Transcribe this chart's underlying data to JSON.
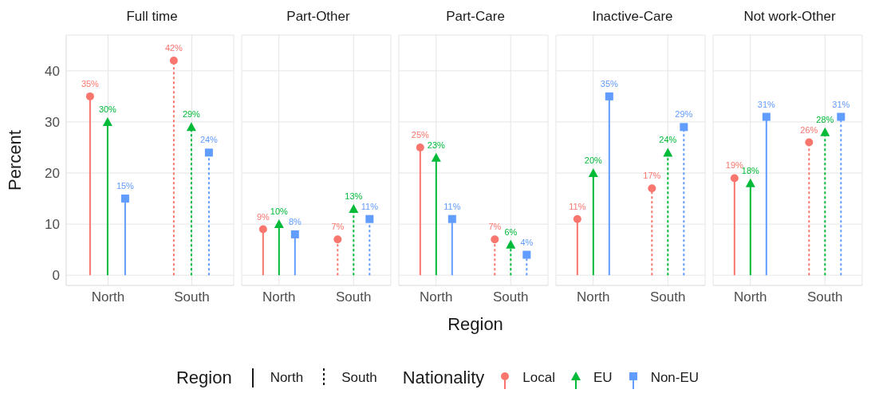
{
  "chart_data": [
    {
      "type": "lollipop",
      "title": "Full time",
      "ylabel": "Percent",
      "categories": [
        "North",
        "South"
      ],
      "line_style": [
        "solid",
        "dotted"
      ],
      "ylim": [
        -2,
        47
      ],
      "yticks": [
        0,
        10,
        20,
        30,
        40
      ],
      "grid": true,
      "legend": "bottom",
      "legend_title": [
        "Region",
        "Nationality"
      ],
      "series": [
        {
          "name": "Local",
          "color": "#f8766d",
          "marker": "circle",
          "values": [
            35,
            42
          ],
          "value_labels": [
            "35%",
            "42%"
          ]
        },
        {
          "name": "EU",
          "color": "#00ba38",
          "marker": "triangle",
          "values": [
            30,
            29
          ],
          "value_labels": [
            "30%",
            "29%"
          ]
        },
        {
          "name": "Non-EU",
          "color": "#619cff",
          "marker": "square",
          "values": [
            15,
            24
          ],
          "value_labels": [
            "15%",
            "24%"
          ]
        }
      ]
    },
    {
      "type": "lollipop",
      "title": "Part-Other",
      "categories": [
        "North",
        "South"
      ],
      "line_style": [
        "solid",
        "dotted"
      ],
      "ylim": [
        -2,
        47
      ],
      "yticks": [
        0,
        10,
        20,
        30,
        40
      ],
      "grid": true,
      "tick_labels": "x",
      "series": [
        {
          "color": "#f8766d",
          "marker": "circle",
          "values": [
            9,
            7
          ],
          "value_labels": [
            "9%",
            "7%"
          ]
        },
        {
          "color": "#00ba38",
          "marker": "triangle",
          "values": [
            10,
            13
          ],
          "value_labels": [
            "10%",
            "13%"
          ]
        },
        {
          "color": "#619cff",
          "marker": "square",
          "values": [
            8,
            11
          ],
          "value_labels": [
            "8%",
            "11%"
          ]
        }
      ]
    },
    {
      "type": "lollipop",
      "title": "Part-Care",
      "xlabel": "Region",
      "categories": [
        "North",
        "South"
      ],
      "line_style": [
        "solid",
        "dotted"
      ],
      "ylim": [
        -2,
        47
      ],
      "yticks": [
        0,
        10,
        20,
        30,
        40
      ],
      "grid": true,
      "tick_labels": "x",
      "series": [
        {
          "color": "#f8766d",
          "marker": "circle",
          "values": [
            25,
            7
          ],
          "value_labels": [
            "25%",
            "7%"
          ]
        },
        {
          "color": "#00ba38",
          "marker": "triangle",
          "values": [
            23,
            6
          ],
          "value_labels": [
            "23%",
            "6%"
          ]
        },
        {
          "color": "#619cff",
          "marker": "square",
          "values": [
            11,
            4
          ],
          "value_labels": [
            "11%",
            "4%"
          ]
        }
      ]
    },
    {
      "type": "lollipop",
      "title": "Inactive-Care",
      "categories": [
        "North",
        "South"
      ],
      "line_style": [
        "solid",
        "dotted"
      ],
      "ylim": [
        -2,
        47
      ],
      "yticks": [
        0,
        10,
        20,
        30,
        40
      ],
      "grid": true,
      "tick_labels": "x",
      "series": [
        {
          "color": "#f8766d",
          "marker": "circle",
          "values": [
            11,
            17
          ],
          "value_labels": [
            "11%",
            "17%"
          ]
        },
        {
          "color": "#00ba38",
          "marker": "triangle",
          "values": [
            20,
            24
          ],
          "value_labels": [
            "20%",
            "24%"
          ]
        },
        {
          "color": "#619cff",
          "marker": "square",
          "values": [
            35,
            29
          ],
          "value_labels": [
            "35%",
            "29%"
          ]
        }
      ]
    },
    {
      "type": "lollipop",
      "title": "Not work-Other",
      "categories": [
        "North",
        "South"
      ],
      "line_style": [
        "solid",
        "dotted"
      ],
      "ylim": [
        -2,
        47
      ],
      "yticks": [
        0,
        10,
        20,
        30,
        40
      ],
      "grid": true,
      "tick_labels": "x",
      "series": [
        {
          "color": "#f8766d",
          "marker": "circle",
          "values": [
            19,
            26
          ],
          "value_labels": [
            "19%",
            "26%"
          ]
        },
        {
          "color": "#00ba38",
          "marker": "triangle",
          "values": [
            18,
            28
          ],
          "value_labels": [
            "18%",
            "28%"
          ]
        },
        {
          "color": "#619cff",
          "marker": "square",
          "values": [
            31,
            31
          ],
          "value_labels": [
            "31%",
            "31%"
          ]
        }
      ]
    }
  ]
}
